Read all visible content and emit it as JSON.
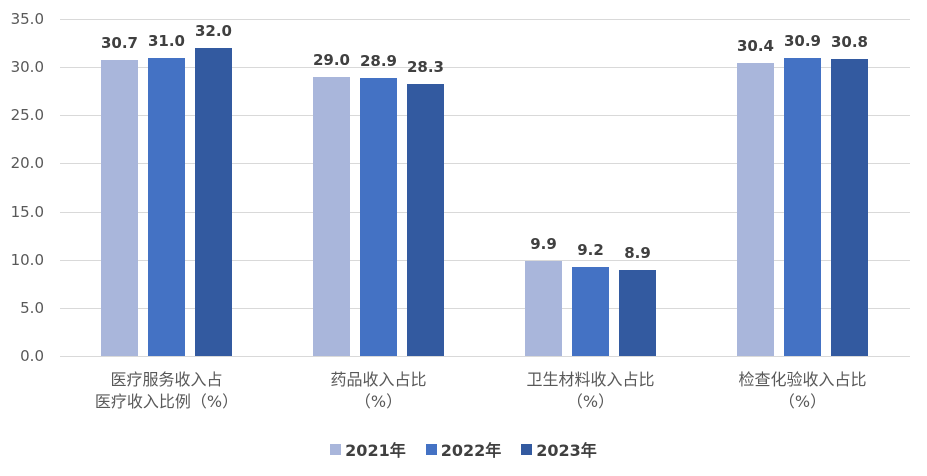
{
  "chart_data": {
    "type": "bar",
    "title": "",
    "xlabel": "",
    "ylabel": "",
    "ylim": [
      0,
      35
    ],
    "yticks": [
      "0.0",
      "5.0",
      "10.0",
      "15.0",
      "20.0",
      "25.0",
      "30.0",
      "35.0"
    ],
    "grid": true,
    "legend_position": "bottom",
    "categories": [
      "医疗服务收入占医疗收入比例（%）",
      "药品收入占比（%）",
      "卫生材料收入占比（%）",
      "检查化验收入占比（%）"
    ],
    "category_lines": [
      [
        "医疗服务收入占",
        "医疗收入比例（%）"
      ],
      [
        "药品收入占比",
        "（%）"
      ],
      [
        "卫生材料收入占比",
        "（%）"
      ],
      [
        "检查化验收入占比",
        "（%）"
      ]
    ],
    "series": [
      {
        "name": "2021年",
        "color": "#a9b6db",
        "values": [
          30.7,
          29.0,
          9.9,
          30.4
        ],
        "labels": [
          "30.7",
          "29.0",
          "9.9",
          "30.4"
        ]
      },
      {
        "name": "2022年",
        "color": "#4472c4",
        "values": [
          31.0,
          28.9,
          9.2,
          30.9
        ],
        "labels": [
          "31.0",
          "28.9",
          "9.2",
          "30.9"
        ]
      },
      {
        "name": "2023年",
        "color": "#335aa0",
        "values": [
          32.0,
          28.3,
          8.9,
          30.8
        ],
        "labels": [
          "32.0",
          "28.3",
          "8.9",
          "30.8"
        ]
      }
    ]
  }
}
